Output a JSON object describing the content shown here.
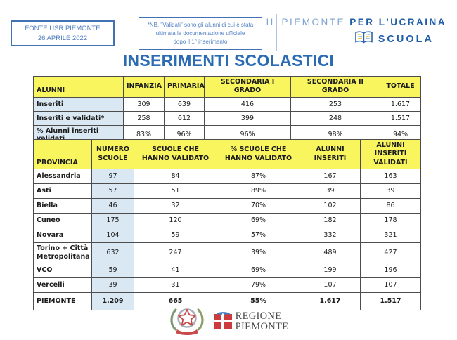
{
  "header": {
    "source_box": {
      "lines": [
        "FONTE USR PIEMONTE",
        "26 APRILE 2022"
      ]
    },
    "note_box": {
      "lines": [
        "*NB. \"Validati\" sono gli alunni di cui è stata",
        "ultimata la documentazione ufficiale",
        "dopo il 1° inserimento"
      ]
    },
    "brand": {
      "title_light": "IL PIEMONTE",
      "title_bold": "PER L'UCRAINA",
      "subtitle": "SCUOLA",
      "book_icon": "open-book-icon"
    }
  },
  "page_title": "INSERIMENTI SCOLASTICI",
  "summary_table": {
    "columns": [
      "ALUNNI",
      "INFANZIA",
      "PRIMARIA",
      "SECONDARIA I GRADO",
      "SECONDARIA II GRADO",
      "TOTALE"
    ],
    "rows": [
      {
        "label": "Inseriti",
        "values": [
          "309",
          "639",
          "416",
          "253",
          "1.617"
        ]
      },
      {
        "label": "Inseriti e validati*",
        "values": [
          "258",
          "612",
          "399",
          "248",
          "1.517"
        ]
      },
      {
        "label": "% Alunni inseriti validati",
        "values": [
          "83%",
          "96%",
          "96%",
          "98%",
          "94%"
        ]
      }
    ]
  },
  "province_table": {
    "columns": [
      "PROVINCIA",
      "NUMERO SCUOLE",
      "SCUOLE CHE HANNO VALIDATO",
      "% SCUOLE CHE HANNO VALIDATO",
      "ALUNNI INSERITI",
      "ALUNNI INSERITI VALIDATI"
    ],
    "rows": [
      {
        "label": "Alessandria",
        "values": [
          "97",
          "84",
          "87%",
          "167",
          "163"
        ]
      },
      {
        "label": "Asti",
        "values": [
          "57",
          "51",
          "89%",
          "39",
          "39"
        ]
      },
      {
        "label": "Biella",
        "values": [
          "46",
          "32",
          "70%",
          "102",
          "86"
        ]
      },
      {
        "label": "Cuneo",
        "values": [
          "175",
          "120",
          "69%",
          "182",
          "178"
        ]
      },
      {
        "label": "Novara",
        "values": [
          "104",
          "59",
          "57%",
          "332",
          "321"
        ]
      },
      {
        "label": "Torino + Città Metropolitana",
        "values": [
          "632",
          "247",
          "39%",
          "489",
          "427"
        ]
      },
      {
        "label": "VCO",
        "values": [
          "59",
          "41",
          "69%",
          "199",
          "196"
        ]
      },
      {
        "label": "Vercelli",
        "values": [
          "39",
          "31",
          "79%",
          "107",
          "107"
        ]
      },
      {
        "label": "PIEMONTE",
        "values": [
          "1.209",
          "665",
          "55%",
          "1.617",
          "1.517"
        ],
        "is_total": true
      }
    ]
  },
  "footer": {
    "emblem_icon": "italy-republic-emblem-icon",
    "region_logo": {
      "shield_icon": "piemonte-shield-icon",
      "lines": [
        "REGIONE",
        "PIEMONTE"
      ]
    }
  },
  "colors": {
    "accent_blue": "#2A6BB4",
    "logo_light_blue": "#7FA3CF",
    "logo_dark_blue": "#1E5DA8",
    "table_header_yellow": "#F8F55F",
    "table_cell_blue": "#D9E8F2",
    "region_red": "#CC3B3D"
  }
}
